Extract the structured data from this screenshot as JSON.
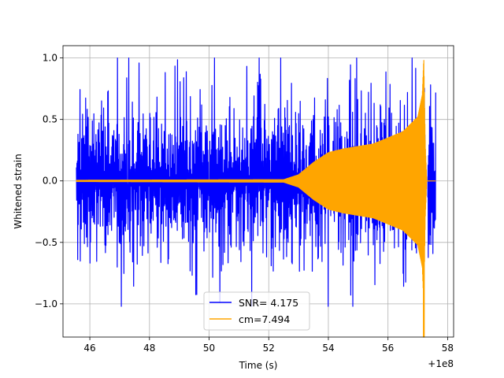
{
  "chart_data": {
    "type": "line",
    "title": "",
    "xlabel": "Time (s)",
    "ylabel": "Whitened strain",
    "x_offset_label": "+1e8",
    "xlim": [
      45.1,
      58.2
    ],
    "ylim": [
      -1.27,
      1.1
    ],
    "x_ticks": [
      46,
      48,
      50,
      52,
      54,
      56,
      58
    ],
    "x_tick_labels": [
      "46",
      "48",
      "50",
      "52",
      "54",
      "56",
      "58"
    ],
    "y_ticks": [
      -1.0,
      -0.5,
      0.0,
      0.5,
      1.0
    ],
    "y_tick_labels": [
      "−1.0",
      "−0.5",
      "0.0",
      "0.5",
      "1.0"
    ],
    "grid": true,
    "legend_position": "lower center",
    "series": [
      {
        "name": "SNR= 4.175",
        "color": "#0000ff",
        "description_of_shape": "noise",
        "x_start": 45.55,
        "x_end": 57.6,
        "gap": [
          57.25,
          57.33
        ],
        "max": 1.0,
        "min": -1.02
      },
      {
        "name": "cm=7.494",
        "color": "#ffa500",
        "description_of_shape": "chirp",
        "x_start": 45.55,
        "x_end": 57.6,
        "envelope": [
          {
            "x": 45.55,
            "y": 0.005
          },
          {
            "x": 52.5,
            "y": 0.01
          },
          {
            "x": 53.0,
            "y": 0.05
          },
          {
            "x": 53.5,
            "y": 0.15
          },
          {
            "x": 54.0,
            "y": 0.23
          },
          {
            "x": 54.5,
            "y": 0.26
          },
          {
            "x": 55.5,
            "y": 0.3
          },
          {
            "x": 56.5,
            "y": 0.4
          },
          {
            "x": 57.0,
            "y": 0.52
          },
          {
            "x": 57.15,
            "y": 0.7
          },
          {
            "x": 57.2,
            "y": 1.0
          },
          {
            "x": 57.25,
            "y": 0.3
          },
          {
            "x": 57.3,
            "y": 0.0
          }
        ],
        "max": 1.0,
        "min": -1.27
      }
    ]
  }
}
